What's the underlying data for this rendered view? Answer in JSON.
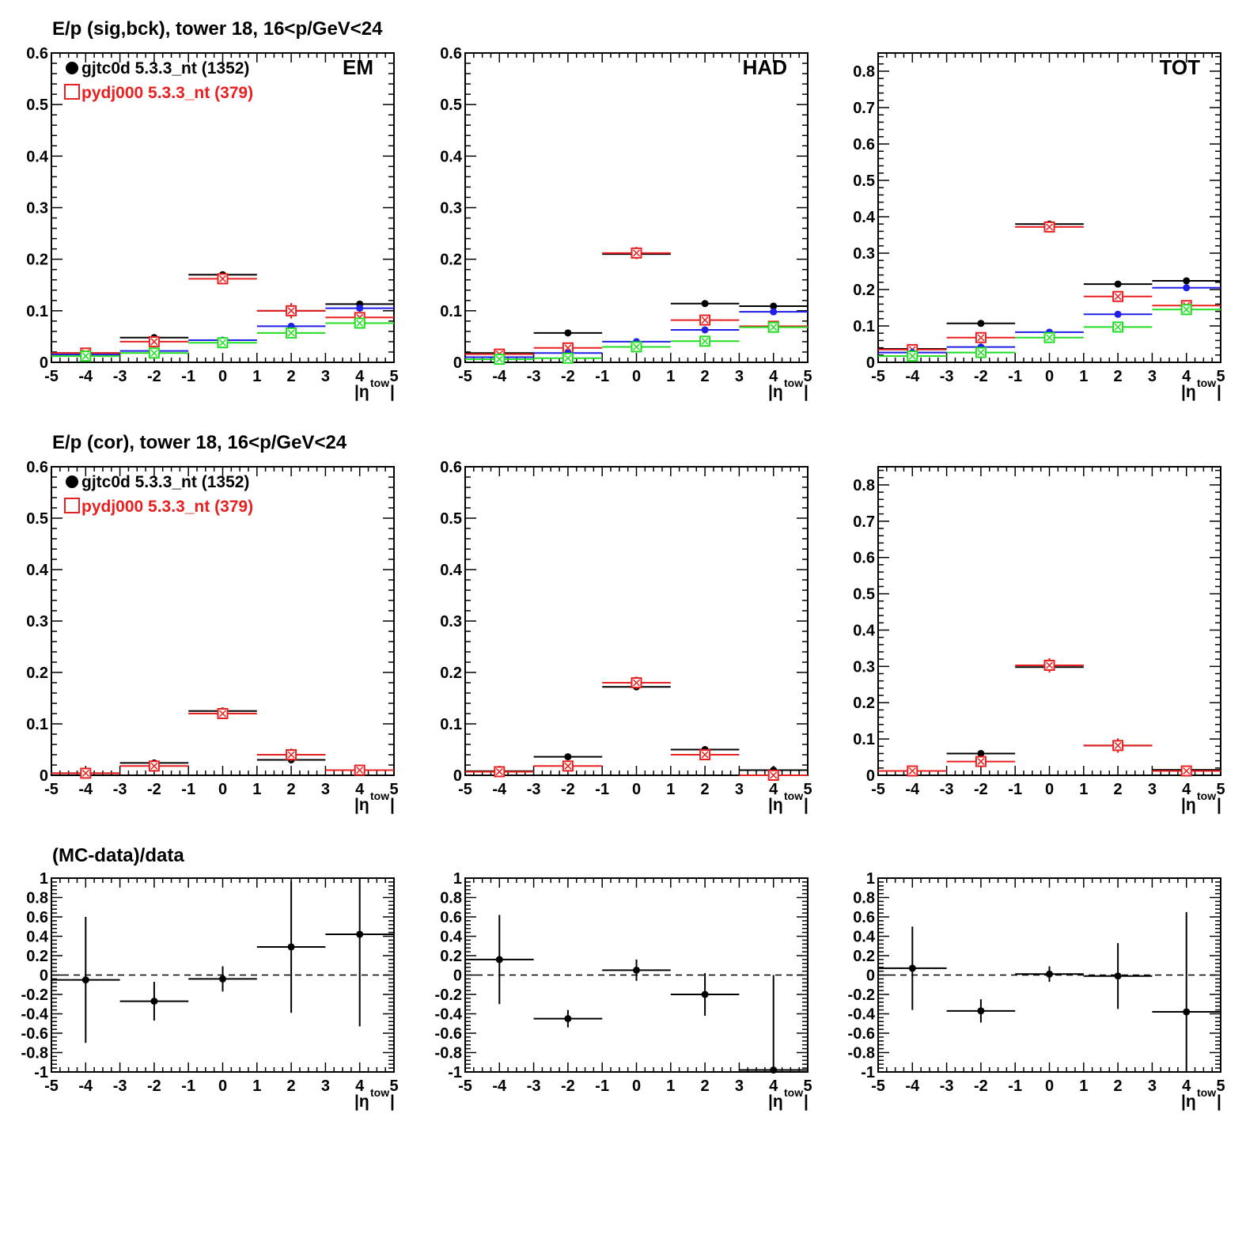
{
  "colors": {
    "data": "#000000",
    "mc": "#e8201f",
    "blue": "#1f1fe8",
    "green": "#22dd22"
  },
  "row_titles": [
    "E/p (sig,bck), tower 18, 16<p/GeV<24",
    "E/p (cor), tower 18, 16<p/GeV<24",
    "(MC-data)/data"
  ],
  "legend": {
    "data_label": "gjtc0d 5.3.3_nt (1352)",
    "mc_label": "pydj000 5.3.3_nt (379)"
  },
  "x_axis": {
    "label_main": "|η",
    "label_sup": "tow",
    "label_end": "|",
    "ticks": [
      "-5",
      "-4",
      "-3",
      "-2",
      "-1",
      "0",
      "1",
      "2",
      "3",
      "4",
      "5"
    ]
  },
  "chart_data": [
    {
      "id": "em-sigbck",
      "type": "scatter",
      "corner_label": "EM",
      "legend": true,
      "xlim": [
        -5,
        5
      ],
      "ylim": [
        0,
        0.6
      ],
      "yticks": [
        "0",
        "0.1",
        "0.2",
        "0.3",
        "0.4",
        "0.5",
        "0.6"
      ],
      "series": [
        {
          "color_key": "data",
          "marker": "dot",
          "x": [
            -4,
            -2,
            0,
            2,
            4
          ],
          "y": [
            0.018,
            0.048,
            0.17,
            0.1,
            0.113
          ],
          "yerr": [
            0.003,
            0.004,
            0.005,
            0.008,
            0.006
          ]
        },
        {
          "color_key": "mc",
          "marker": "box",
          "x": [
            -4,
            -2,
            0,
            2,
            4
          ],
          "y": [
            0.018,
            0.04,
            0.162,
            0.1,
            0.087
          ],
          "yerr": [
            0.004,
            0.008,
            0.008,
            0.015,
            0.01
          ]
        },
        {
          "color_key": "blue",
          "marker": "dot",
          "x": [
            -4,
            -2,
            0,
            2,
            4
          ],
          "y": [
            0.015,
            0.022,
            0.043,
            0.07,
            0.105
          ],
          "yerr": [
            0,
            0,
            0,
            0,
            0
          ]
        },
        {
          "color_key": "green",
          "marker": "box",
          "x": [
            -4,
            -2,
            0,
            2,
            4
          ],
          "y": [
            0.012,
            0.018,
            0.038,
            0.057,
            0.076
          ],
          "yerr": [
            0,
            0,
            0,
            0,
            0
          ]
        }
      ]
    },
    {
      "id": "had-sigbck",
      "type": "scatter",
      "corner_label": "HAD",
      "legend": false,
      "xlim": [
        -5,
        5
      ],
      "ylim": [
        0,
        0.6
      ],
      "yticks": [
        "0",
        "0.1",
        "0.2",
        "0.3",
        "0.4",
        "0.5",
        "0.6"
      ],
      "series": [
        {
          "color_key": "data",
          "marker": "dot",
          "x": [
            -4,
            -2,
            0,
            2,
            4
          ],
          "y": [
            0.018,
            0.057,
            0.21,
            0.114,
            0.109
          ],
          "yerr": [
            0.003,
            0.004,
            0.007,
            0.005,
            0.005
          ]
        },
        {
          "color_key": "mc",
          "marker": "box",
          "x": [
            -4,
            -2,
            0,
            2,
            4
          ],
          "y": [
            0.016,
            0.028,
            0.212,
            0.082,
            0.07
          ],
          "yerr": [
            0.004,
            0.006,
            0.012,
            0.008,
            0.006
          ]
        },
        {
          "color_key": "blue",
          "marker": "dot",
          "x": [
            -4,
            -2,
            0,
            2,
            4
          ],
          "y": [
            0.01,
            0.018,
            0.04,
            0.063,
            0.098
          ],
          "yerr": [
            0,
            0,
            0,
            0,
            0
          ]
        },
        {
          "color_key": "green",
          "marker": "box",
          "x": [
            -4,
            -2,
            0,
            2,
            4
          ],
          "y": [
            0.006,
            0.008,
            0.03,
            0.041,
            0.068
          ],
          "yerr": [
            0,
            0,
            0,
            0,
            0
          ]
        }
      ]
    },
    {
      "id": "tot-sigbck",
      "type": "scatter",
      "corner_label": "TOT",
      "legend": false,
      "xlim": [
        -5,
        5
      ],
      "ylim": [
        0,
        0.85
      ],
      "yticks": [
        "0",
        "0.1",
        "0.2",
        "0.3",
        "0.4",
        "0.5",
        "0.6",
        "0.7",
        "0.8"
      ],
      "series": [
        {
          "color_key": "data",
          "marker": "dot",
          "x": [
            -4,
            -2,
            0,
            2,
            4
          ],
          "y": [
            0.037,
            0.107,
            0.38,
            0.215,
            0.224
          ],
          "yerr": [
            0.004,
            0.005,
            0.008,
            0.006,
            0.006
          ]
        },
        {
          "color_key": "mc",
          "marker": "box",
          "x": [
            -4,
            -2,
            0,
            2,
            4
          ],
          "y": [
            0.035,
            0.068,
            0.372,
            0.181,
            0.156
          ],
          "yerr": [
            0.005,
            0.008,
            0.015,
            0.015,
            0.01
          ]
        },
        {
          "color_key": "blue",
          "marker": "dot",
          "x": [
            -4,
            -2,
            0,
            2,
            4
          ],
          "y": [
            0.027,
            0.042,
            0.083,
            0.132,
            0.205
          ],
          "yerr": [
            0,
            0,
            0,
            0,
            0
          ]
        },
        {
          "color_key": "green",
          "marker": "box",
          "x": [
            -4,
            -2,
            0,
            2,
            4
          ],
          "y": [
            0.017,
            0.027,
            0.068,
            0.097,
            0.145
          ],
          "yerr": [
            0,
            0,
            0,
            0,
            0
          ]
        }
      ]
    },
    {
      "id": "em-cor",
      "type": "scatter",
      "corner_label": "",
      "legend": true,
      "xlim": [
        -5,
        5
      ],
      "ylim": [
        0,
        0.6
      ],
      "yticks": [
        "0",
        "0.1",
        "0.2",
        "0.3",
        "0.4",
        "0.5",
        "0.6"
      ],
      "series": [
        {
          "color_key": "data",
          "marker": "dot",
          "x": [
            -4,
            -2,
            0,
            2,
            4
          ],
          "y": [
            0.004,
            0.024,
            0.125,
            0.03,
            0.01
          ],
          "yerr": [
            0.004,
            0.004,
            0.005,
            0.005,
            0.004
          ]
        },
        {
          "color_key": "mc",
          "marker": "box",
          "x": [
            -4,
            -2,
            0,
            2,
            4
          ],
          "y": [
            0.004,
            0.018,
            0.12,
            0.04,
            0.01
          ],
          "yerr": [
            0.01,
            0.006,
            0.01,
            0.012,
            0.006
          ]
        }
      ]
    },
    {
      "id": "had-cor",
      "type": "scatter",
      "corner_label": "",
      "legend": false,
      "xlim": [
        -5,
        5
      ],
      "ylim": [
        0,
        0.6
      ],
      "yticks": [
        "0",
        "0.1",
        "0.2",
        "0.3",
        "0.4",
        "0.5",
        "0.6"
      ],
      "series": [
        {
          "color_key": "data",
          "marker": "dot",
          "x": [
            -4,
            -2,
            0,
            2,
            4
          ],
          "y": [
            0.008,
            0.036,
            0.172,
            0.05,
            0.01
          ],
          "yerr": [
            0.003,
            0.004,
            0.006,
            0.005,
            0.004
          ]
        },
        {
          "color_key": "mc",
          "marker": "box",
          "x": [
            -4,
            -2,
            0,
            2,
            4
          ],
          "y": [
            0.007,
            0.018,
            0.18,
            0.04,
            0.0
          ],
          "yerr": [
            0.004,
            0.008,
            0.012,
            0.008,
            0.004
          ]
        }
      ]
    },
    {
      "id": "tot-cor",
      "type": "scatter",
      "corner_label": "",
      "legend": false,
      "xlim": [
        -5,
        5
      ],
      "ylim": [
        0,
        0.85
      ],
      "yticks": [
        "0",
        "0.1",
        "0.2",
        "0.3",
        "0.4",
        "0.5",
        "0.6",
        "0.7",
        "0.8"
      ],
      "series": [
        {
          "color_key": "data",
          "marker": "dot",
          "x": [
            -4,
            -2,
            0,
            2,
            4
          ],
          "y": [
            0.012,
            0.06,
            0.298,
            0.082,
            0.015
          ],
          "yerr": [
            0.004,
            0.005,
            0.008,
            0.005,
            0.004
          ]
        },
        {
          "color_key": "mc",
          "marker": "box",
          "x": [
            -4,
            -2,
            0,
            2,
            4
          ],
          "y": [
            0.012,
            0.038,
            0.303,
            0.082,
            0.012
          ],
          "yerr": [
            0.006,
            0.01,
            0.02,
            0.02,
            0.006
          ]
        }
      ]
    },
    {
      "id": "em-ratio",
      "type": "scatter",
      "corner_label": "",
      "legend": false,
      "zero_line": true,
      "xlim": [
        -5,
        5
      ],
      "ylim": [
        -1,
        1
      ],
      "yticks": [
        "-1",
        "-0.8",
        "-0.6",
        "-0.4",
        "-0.2",
        "0",
        "0.2",
        "0.4",
        "0.6",
        "0.8",
        "1"
      ],
      "series": [
        {
          "color_key": "data",
          "marker": "dot",
          "x": [
            -4,
            -2,
            0,
            2,
            4
          ],
          "y": [
            -0.05,
            -0.27,
            -0.04,
            0.29,
            0.42
          ],
          "yerr": [
            0.65,
            0.2,
            0.13,
            0.68,
            0.95
          ]
        }
      ]
    },
    {
      "id": "had-ratio",
      "type": "scatter",
      "corner_label": "",
      "legend": false,
      "zero_line": true,
      "xlim": [
        -5,
        5
      ],
      "ylim": [
        -1,
        1
      ],
      "yticks": [
        "-1",
        "-0.8",
        "-0.6",
        "-0.4",
        "-0.2",
        "0",
        "0.2",
        "0.4",
        "0.6",
        "0.8",
        "1"
      ],
      "series": [
        {
          "color_key": "data",
          "marker": "dot",
          "x": [
            -4,
            -2,
            0,
            2,
            4
          ],
          "y": [
            0.16,
            -0.45,
            0.05,
            -0.2,
            -0.98
          ],
          "yerr": [
            0.46,
            0.09,
            0.11,
            0.22,
            0.98
          ]
        }
      ]
    },
    {
      "id": "tot-ratio",
      "type": "scatter",
      "corner_label": "",
      "legend": false,
      "zero_line": true,
      "xlim": [
        -5,
        5
      ],
      "ylim": [
        -1,
        1
      ],
      "yticks": [
        "-1",
        "-0.8",
        "-0.6",
        "-0.4",
        "-0.2",
        "0",
        "0.2",
        "0.4",
        "0.6",
        "0.8",
        "1"
      ],
      "series": [
        {
          "color_key": "data",
          "marker": "dot",
          "x": [
            -4,
            -2,
            0,
            2,
            4
          ],
          "y": [
            0.07,
            -0.37,
            0.01,
            -0.01,
            -0.38
          ],
          "yerr": [
            0.43,
            0.12,
            0.08,
            0.34,
            1.03
          ]
        }
      ]
    }
  ]
}
